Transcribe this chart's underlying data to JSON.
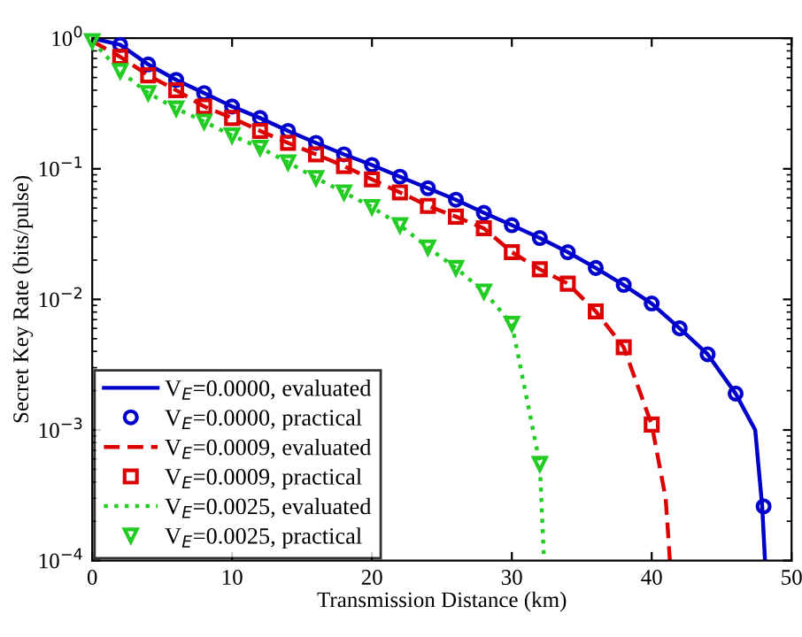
{
  "chart_data": {
    "type": "line",
    "xlabel": "Transmission Distance (km)",
    "ylabel": "Secret Key Rate (bits/pulse)",
    "log": "y",
    "xlim": [
      0,
      50
    ],
    "xticks": [
      0,
      10,
      20,
      30,
      40,
      50
    ],
    "ylim": [
      0.0001,
      1
    ],
    "yticks": [
      {
        "value": 0.0001,
        "label": "10$^{−4}$"
      },
      {
        "value": 0.001,
        "label": "10$^{−3}$"
      },
      {
        "value": 0.01,
        "label": "10$^{−2}$"
      },
      {
        "value": 0.1,
        "label": "10$^{−1}$"
      },
      {
        "value": 1,
        "label": "10$^{0}$"
      }
    ],
    "legend": "bottom left",
    "series": [
      {
        "name": "V$_{E}$=0.0000, evaluated",
        "line_style": "solid",
        "marker": "none",
        "color": "#0000cc",
        "x": [
          0,
          2,
          4,
          6,
          8,
          10,
          12,
          14,
          16,
          18,
          20,
          22,
          24,
          26,
          28,
          30,
          32,
          34,
          36,
          38,
          40,
          42,
          44,
          46,
          47.4,
          47.9,
          48.1
        ],
        "values": [
          1.0,
          0.89,
          0.63,
          0.48,
          0.38,
          0.3,
          0.245,
          0.195,
          0.158,
          0.129,
          0.107,
          0.087,
          0.071,
          0.058,
          0.046,
          0.037,
          0.0295,
          0.023,
          0.0174,
          0.0129,
          0.0093,
          0.006,
          0.0038,
          0.0019,
          0.001,
          0.00026,
          0.0001
        ]
      },
      {
        "name": "V$_{E}$=0.0000, practical",
        "type": "scatter",
        "marker": "circle",
        "color": "#0000cc",
        "x": [
          2,
          4,
          6,
          8,
          10,
          12,
          14,
          16,
          18,
          20,
          22,
          24,
          26,
          28,
          30,
          32,
          34,
          36,
          38,
          40,
          42,
          44,
          46,
          48
        ],
        "values": [
          0.89,
          0.63,
          0.48,
          0.38,
          0.3,
          0.245,
          0.195,
          0.158,
          0.129,
          0.107,
          0.087,
          0.071,
          0.058,
          0.046,
          0.037,
          0.0295,
          0.023,
          0.0174,
          0.0129,
          0.0093,
          0.006,
          0.0038,
          0.0019,
          0.00026
        ]
      },
      {
        "name": "V$_{E}$=0.0009, evaluated",
        "line_style": "dashed",
        "marker": "none",
        "color": "#dd0000",
        "x": [
          0,
          2,
          4,
          6,
          8,
          10,
          12,
          14,
          16,
          18,
          20,
          22,
          24,
          26,
          28,
          30,
          32,
          34,
          36,
          38,
          40,
          41.0,
          41.3
        ],
        "values": [
          0.95,
          0.72,
          0.52,
          0.4,
          0.3,
          0.245,
          0.195,
          0.158,
          0.129,
          0.105,
          0.083,
          0.066,
          0.052,
          0.043,
          0.035,
          0.023,
          0.017,
          0.0132,
          0.0081,
          0.0043,
          0.0011,
          0.0003,
          0.0001
        ]
      },
      {
        "name": "V$_{E}$=0.0009, practical",
        "type": "scatter",
        "marker": "square",
        "color": "#dd0000",
        "x": [
          2,
          4,
          6,
          8,
          10,
          12,
          14,
          16,
          18,
          20,
          22,
          24,
          26,
          28,
          30,
          32,
          34,
          36,
          38,
          40
        ],
        "values": [
          0.72,
          0.52,
          0.4,
          0.3,
          0.245,
          0.195,
          0.158,
          0.129,
          0.105,
          0.083,
          0.066,
          0.052,
          0.043,
          0.035,
          0.023,
          0.017,
          0.0132,
          0.0081,
          0.0043,
          0.0011
        ]
      },
      {
        "name": "V$_{E}$=0.0025, evaluated",
        "line_style": "dotted",
        "marker": "none",
        "color": "#22cc22",
        "x": [
          0,
          2,
          4,
          6,
          8,
          10,
          12,
          14,
          16,
          18,
          20,
          22,
          24,
          26,
          28,
          30,
          32,
          32.3
        ],
        "values": [
          0.95,
          0.56,
          0.38,
          0.29,
          0.23,
          0.18,
          0.145,
          0.112,
          0.085,
          0.066,
          0.051,
          0.037,
          0.025,
          0.0174,
          0.0115,
          0.0065,
          0.00055,
          0.0001
        ]
      },
      {
        "name": "V$_{E}$=0.0025, practical",
        "type": "scatter",
        "marker": "triangle",
        "color": "#22cc22",
        "x": [
          0,
          2,
          4,
          6,
          8,
          10,
          12,
          14,
          16,
          18,
          20,
          22,
          24,
          26,
          28,
          30,
          32
        ],
        "values": [
          0.95,
          0.56,
          0.38,
          0.29,
          0.23,
          0.18,
          0.145,
          0.112,
          0.085,
          0.066,
          0.051,
          0.037,
          0.025,
          0.0174,
          0.0115,
          0.0065,
          0.00055
        ]
      }
    ]
  }
}
